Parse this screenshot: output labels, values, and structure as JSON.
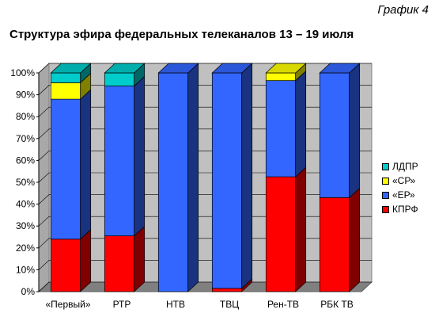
{
  "figure_label": "График 4",
  "chart_data": {
    "type": "bar",
    "stacked": true,
    "title": "Структура эфира федеральных телеканалов 13 – 19 июля",
    "categories": [
      "«Первый»",
      "РТР",
      "НТВ",
      "ТВЦ",
      "Рен-ТВ",
      "РБК ТВ"
    ],
    "series": [
      {
        "name": "КПРФ",
        "color": "#ff0000",
        "values": [
          24,
          25.5,
          0,
          1.5,
          52.5,
          43
        ]
      },
      {
        "name": "«ЕР»",
        "color": "#3366ff",
        "values": [
          64,
          68.5,
          100,
          98.5,
          44,
          57
        ]
      },
      {
        "name": "«СР»",
        "color": "#ffff00",
        "values": [
          7.5,
          0,
          0,
          0,
          3.5,
          0
        ]
      },
      {
        "name": "ЛДПР",
        "color": "#00cccc",
        "values": [
          4.5,
          6,
          0,
          0,
          0,
          0
        ]
      }
    ],
    "ylim": [
      0,
      100
    ],
    "yticks": [
      "0%",
      "10%",
      "20%",
      "30%",
      "40%",
      "50%",
      "60%",
      "70%",
      "80%",
      "90%",
      "100%"
    ],
    "legend_position": "right",
    "legend_order": [
      "ЛДПР",
      "«СР»",
      "«ЕР»",
      "КПРФ"
    ],
    "grid": true,
    "wall_color": "#c0c0c0",
    "floor_color": "#808080"
  }
}
